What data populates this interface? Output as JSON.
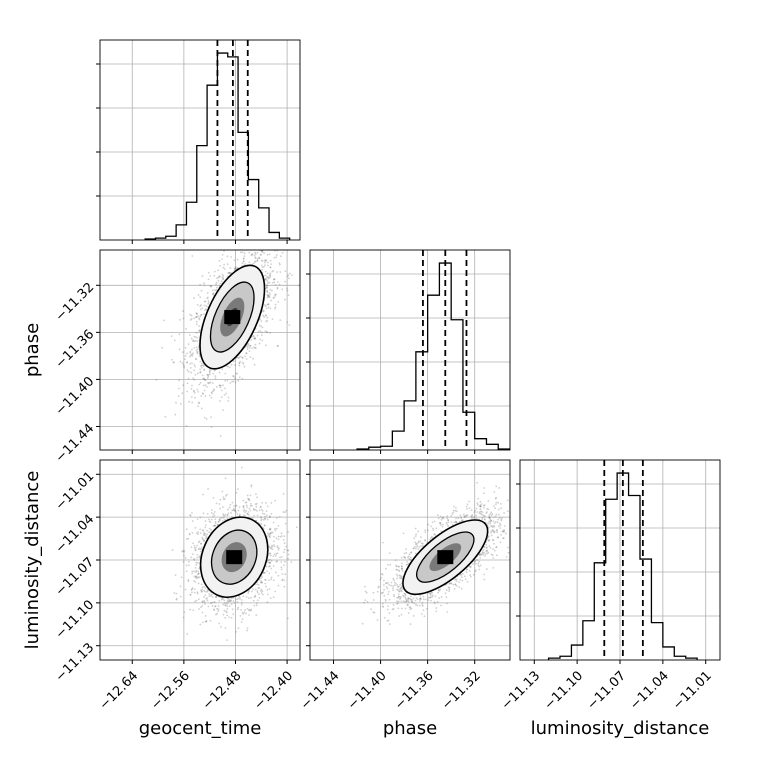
{
  "chart_data": {
    "type": "corner",
    "parameters": [
      "geocent_time",
      "phase",
      "luminosity_distance"
    ],
    "ranges": {
      "geocent_time": [
        -12.69,
        -12.38
      ],
      "phase": [
        -11.46,
        -11.29
      ],
      "luminosity_distance": [
        -11.14,
        -11.0
      ]
    },
    "ticks": {
      "geocent_time": [
        -12.64,
        -12.56,
        -12.48,
        -12.4
      ],
      "phase": [
        -11.44,
        -11.4,
        -11.36,
        -11.32
      ],
      "luminosity_distance": [
        -11.13,
        -11.1,
        -11.07,
        -11.04,
        -11.01
      ]
    },
    "tick_labels": {
      "geocent_time": [
        "−12.64",
        "−12.56",
        "−12.48",
        "−12.40"
      ],
      "phase": [
        "−11.44",
        "−11.40",
        "−11.36",
        "−11.32"
      ],
      "luminosity_distance": [
        "−11.13",
        "−11.10",
        "−11.07",
        "−11.04",
        "−11.01"
      ]
    },
    "marginals": {
      "geocent_time": {
        "bin_edges": [
          -12.62,
          -12.604,
          -12.588,
          -12.572,
          -12.556,
          -12.54,
          -12.524,
          -12.508,
          -12.492,
          -12.476,
          -12.46,
          -12.444,
          -12.428,
          -12.412,
          -12.396
        ],
        "counts": [
          0.005,
          0.01,
          0.02,
          0.08,
          0.2,
          0.5,
          0.82,
          0.99,
          0.97,
          0.57,
          0.32,
          0.17,
          0.04,
          0.01
        ]
      },
      "phase": {
        "bin_edges": [
          -11.42,
          -11.41,
          -11.4,
          -11.39,
          -11.38,
          -11.37,
          -11.36,
          -11.35,
          -11.34,
          -11.33,
          -11.32,
          -11.31,
          -11.3,
          -11.29
        ],
        "counts": [
          0.005,
          0.015,
          0.02,
          0.1,
          0.26,
          0.52,
          0.82,
          0.99,
          0.69,
          0.2,
          0.06,
          0.03,
          0.005
        ]
      },
      "luminosity_distance": {
        "bin_edges": [
          -11.12,
          -11.112,
          -11.104,
          -11.096,
          -11.088,
          -11.08,
          -11.072,
          -11.064,
          -11.056,
          -11.048,
          -11.04,
          -11.032,
          -11.024,
          -11.016
        ],
        "counts": [
          0.01,
          0.02,
          0.08,
          0.21,
          0.52,
          0.86,
          1.0,
          0.88,
          0.54,
          0.2,
          0.07,
          0.02,
          0.01
        ]
      }
    },
    "quantiles": {
      "geocent_time": [
        -12.508,
        -12.484,
        -12.461
      ],
      "phase": [
        -11.364,
        -11.345,
        -11.327
      ],
      "luminosity_distance": [
        -11.081,
        -11.068,
        -11.054
      ]
    },
    "joint": [
      {
        "x": "geocent_time",
        "y": "phase",
        "center": [
          -12.485,
          -11.347
        ],
        "sd": [
          0.025,
          0.022
        ],
        "corr": 0.55
      },
      {
        "x": "geocent_time",
        "y": "luminosity_distance",
        "center": [
          -12.482,
          -11.068
        ],
        "sd": [
          0.026,
          0.014
        ],
        "corr": 0.2
      },
      {
        "x": "phase",
        "y": "luminosity_distance",
        "center": [
          -11.345,
          -11.068
        ],
        "sd": [
          0.018,
          0.013
        ],
        "corr": 0.7
      }
    ],
    "grid": true,
    "legend": "none"
  }
}
